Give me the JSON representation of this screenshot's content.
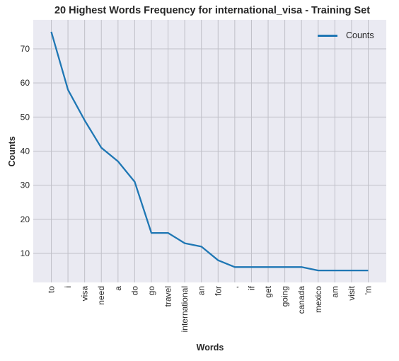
{
  "chart_data": {
    "type": "line",
    "title": "20 Highest Words Frequency for international_visa - Training Set",
    "xlabel": "Words",
    "ylabel": "Counts",
    "categories": [
      "to",
      "i",
      "visa",
      "need",
      "a",
      "do",
      "go",
      "travel",
      "international",
      "an",
      "for",
      ",",
      "if",
      "get",
      "going",
      "canada",
      "mexico",
      "am",
      "visit",
      "'m"
    ],
    "series": [
      {
        "name": "Counts",
        "values": [
          75,
          58,
          49,
          41,
          37,
          31,
          16,
          16,
          13,
          12,
          8,
          6,
          6,
          6,
          6,
          6,
          5,
          5,
          5,
          5
        ]
      }
    ],
    "y_ticks": [
      10,
      20,
      30,
      40,
      50,
      60,
      70
    ],
    "ylim": [
      1.5,
      78.5
    ],
    "grid": true,
    "legend_position": "top-right",
    "colors": {
      "line": "#1f77b4",
      "plot_background": "#eaeaf2",
      "grid": "#c0c0c8"
    }
  }
}
